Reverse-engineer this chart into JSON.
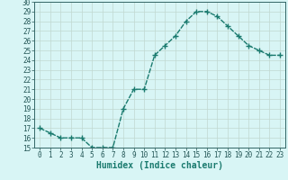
{
  "x": [
    0,
    1,
    2,
    3,
    4,
    5,
    6,
    7,
    8,
    9,
    10,
    11,
    12,
    13,
    14,
    15,
    16,
    17,
    18,
    19,
    20,
    21,
    22,
    23
  ],
  "y": [
    17,
    16.5,
    16,
    16,
    16,
    15,
    15,
    15,
    19,
    21,
    21,
    24.5,
    25.5,
    26.5,
    28,
    29,
    29,
    28.5,
    27.5,
    26.5,
    25.5,
    25,
    24.5,
    24.5
  ],
  "line_color": "#1a7a6e",
  "marker": "+",
  "marker_size": 4,
  "background_color": "#d8f5f5",
  "grid_color": "#c8e8e8",
  "grid_color_major": "#c0d8d0",
  "xlabel": "Humidex (Indice chaleur)",
  "ylim": [
    15,
    30
  ],
  "xlim": [
    -0.5,
    23.5
  ],
  "yticks": [
    15,
    16,
    17,
    18,
    19,
    20,
    21,
    22,
    23,
    24,
    25,
    26,
    27,
    28,
    29,
    30
  ],
  "xticks": [
    0,
    1,
    2,
    3,
    4,
    5,
    6,
    7,
    8,
    9,
    10,
    11,
    12,
    13,
    14,
    15,
    16,
    17,
    18,
    19,
    20,
    21,
    22,
    23
  ],
  "xtick_labels": [
    "0",
    "1",
    "2",
    "3",
    "4",
    "5",
    "6",
    "7",
    "8",
    "9",
    "10",
    "11",
    "12",
    "13",
    "14",
    "15",
    "16",
    "17",
    "18",
    "19",
    "20",
    "21",
    "22",
    "23"
  ],
  "tick_fontsize": 5.5,
  "label_fontsize": 7,
  "line_width": 1.0
}
